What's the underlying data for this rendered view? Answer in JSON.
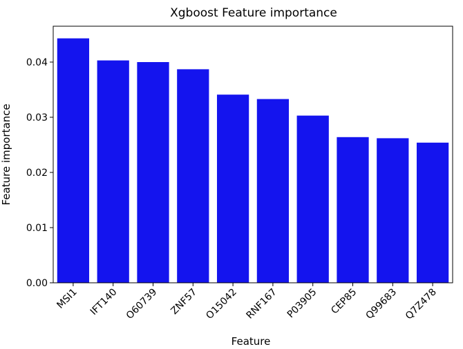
{
  "chart_data": {
    "type": "bar",
    "title": "Xgboost Feature importance",
    "xlabel": "Feature",
    "ylabel": "Feature importance",
    "categories": [
      "MSI1",
      "IFT140",
      "O60739",
      "ZNF57",
      "O15042",
      "RNF167",
      "P03905",
      "CEP85",
      "Q99683",
      "Q7Z478"
    ],
    "values": [
      0.0443,
      0.0403,
      0.04,
      0.0387,
      0.0341,
      0.0333,
      0.0303,
      0.0264,
      0.0262,
      0.0254
    ],
    "ylim": [
      0,
      0.0465
    ],
    "yticks": [
      0.0,
      0.01,
      0.02,
      0.03,
      0.04
    ],
    "ytick_labels": [
      "0.00",
      "0.01",
      "0.02",
      "0.03",
      "0.04"
    ],
    "bar_color": "#1414ee",
    "grid": false,
    "legend": "none"
  }
}
